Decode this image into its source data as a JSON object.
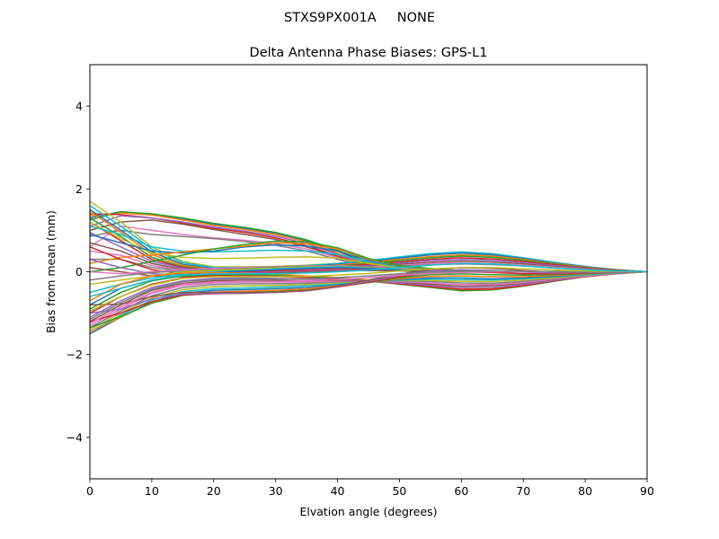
{
  "figure": {
    "suptitle": "STXS9PX001A     NONE"
  },
  "chart_data": {
    "type": "line",
    "title": "Delta Antenna Phase Biases: GPS-L1",
    "xlabel": "Elvation angle (degrees)",
    "ylabel": "Bias from mean (mm)",
    "xlim": [
      0,
      90
    ],
    "ylim": [
      -5,
      5
    ],
    "xticks": [
      0,
      10,
      20,
      30,
      40,
      50,
      60,
      70,
      80,
      90
    ],
    "yticks": [
      -4,
      -2,
      0,
      2,
      4
    ],
    "ytick_labels": [
      "−4",
      "−2",
      "0",
      "2",
      "4"
    ],
    "grid": false,
    "legend": "none",
    "x": [
      0,
      5,
      10,
      15,
      20,
      25,
      30,
      35,
      40,
      45,
      50,
      55,
      60,
      65,
      70,
      75,
      80,
      85,
      90
    ],
    "color_cycle": [
      "#1f77b4",
      "#ff7f0e",
      "#2ca02c",
      "#d62728",
      "#9467bd",
      "#8c564b",
      "#e377c2",
      "#7f7f7f",
      "#bcbd22",
      "#17becf"
    ],
    "series": [
      {
        "values": [
          1.3,
          1.45,
          1.38,
          1.27,
          1.15,
          1.05,
          0.93,
          0.75,
          0.5,
          0.2,
          0.08,
          0.02,
          0.0,
          0.0,
          0.0,
          0.0,
          0.0,
          0.0,
          0.0
        ]
      },
      {
        "values": [
          1.35,
          1.42,
          1.37,
          1.25,
          1.12,
          1.02,
          0.9,
          0.72,
          0.45,
          0.18,
          0.06,
          0.01,
          0.0,
          0.0,
          0.0,
          0.0,
          0.0,
          0.0,
          0.0
        ]
      },
      {
        "values": [
          1.25,
          1.45,
          1.4,
          1.3,
          1.17,
          1.07,
          0.95,
          0.77,
          0.52,
          0.22,
          0.08,
          0.02,
          -0.01,
          0.0,
          0.0,
          0.0,
          0.0,
          0.0,
          0.0
        ]
      },
      {
        "values": [
          1.4,
          1.38,
          1.3,
          1.18,
          1.05,
          0.95,
          0.82,
          0.63,
          0.38,
          0.15,
          0.05,
          0.01,
          0.0,
          0.0,
          0.0,
          0.0,
          0.0,
          0.0,
          0.0
        ]
      },
      {
        "values": [
          1.1,
          1.35,
          1.3,
          1.2,
          1.08,
          0.98,
          0.86,
          0.68,
          0.42,
          0.17,
          0.05,
          0.01,
          0.0,
          0.0,
          0.0,
          0.0,
          0.0,
          0.0,
          0.0
        ]
      },
      {
        "values": [
          1.0,
          1.2,
          1.25,
          1.15,
          1.02,
          0.9,
          0.78,
          0.6,
          0.36,
          0.13,
          0.04,
          0.0,
          0.0,
          0.0,
          0.0,
          0.0,
          0.0,
          0.0,
          0.0
        ]
      },
      {
        "values": [
          0.6,
          1.1,
          1.0,
          0.9,
          0.82,
          0.76,
          0.68,
          0.55,
          0.34,
          0.12,
          0.04,
          0.0,
          0.0,
          0.0,
          0.0,
          0.0,
          0.0,
          0.0,
          0.0
        ]
      },
      {
        "values": [
          0.85,
          1.0,
          0.9,
          0.85,
          0.8,
          0.73,
          0.64,
          0.5,
          0.3,
          0.11,
          0.04,
          0.01,
          0.0,
          0.0,
          0.0,
          0.0,
          0.0,
          0.0,
          0.0
        ]
      },
      {
        "values": [
          1.7,
          1.2,
          0.6,
          0.25,
          0.12,
          0.12,
          0.13,
          0.16,
          0.2,
          0.26,
          0.34,
          0.42,
          0.46,
          0.42,
          0.33,
          0.22,
          0.12,
          0.05,
          0.0
        ]
      },
      {
        "values": [
          1.6,
          1.1,
          0.55,
          0.22,
          0.1,
          0.1,
          0.12,
          0.15,
          0.2,
          0.27,
          0.36,
          0.44,
          0.48,
          0.44,
          0.34,
          0.23,
          0.13,
          0.05,
          0.0
        ]
      },
      {
        "values": [
          1.5,
          1.0,
          0.48,
          0.18,
          0.08,
          0.08,
          0.1,
          0.13,
          0.18,
          0.25,
          0.33,
          0.41,
          0.45,
          0.41,
          0.32,
          0.21,
          0.12,
          0.05,
          0.0
        ]
      },
      {
        "values": [
          1.45,
          0.95,
          0.42,
          0.15,
          0.06,
          0.06,
          0.08,
          0.11,
          0.16,
          0.22,
          0.3,
          0.37,
          0.41,
          0.38,
          0.3,
          0.2,
          0.11,
          0.04,
          0.0
        ]
      },
      {
        "values": [
          1.3,
          0.85,
          0.35,
          0.12,
          0.05,
          0.05,
          0.07,
          0.1,
          0.14,
          0.2,
          0.27,
          0.34,
          0.38,
          0.35,
          0.28,
          0.19,
          0.1,
          0.04,
          0.0
        ]
      },
      {
        "values": [
          1.2,
          0.75,
          0.3,
          0.1,
          0.04,
          0.04,
          0.06,
          0.09,
          0.12,
          0.18,
          0.24,
          0.3,
          0.34,
          0.31,
          0.25,
          0.17,
          0.09,
          0.04,
          0.0
        ]
      },
      {
        "values": [
          0.95,
          0.6,
          0.25,
          0.08,
          0.03,
          0.03,
          0.05,
          0.07,
          0.1,
          0.15,
          0.21,
          0.27,
          0.3,
          0.28,
          0.22,
          0.15,
          0.08,
          0.03,
          0.0
        ]
      },
      {
        "values": [
          0.7,
          0.5,
          0.2,
          0.05,
          0.02,
          0.02,
          0.04,
          0.06,
          0.09,
          0.13,
          0.18,
          0.23,
          0.26,
          0.24,
          0.19,
          0.13,
          0.07,
          0.03,
          0.0
        ]
      },
      {
        "values": [
          0.5,
          0.4,
          0.15,
          0.03,
          0.01,
          0.01,
          0.03,
          0.05,
          0.07,
          0.11,
          0.15,
          0.2,
          0.22,
          0.2,
          0.16,
          0.11,
          0.06,
          0.02,
          0.0
        ]
      },
      {
        "values": [
          0.3,
          0.3,
          0.1,
          0.02,
          0.0,
          0.0,
          0.02,
          0.04,
          0.06,
          0.09,
          0.13,
          0.17,
          0.19,
          0.17,
          0.14,
          0.09,
          0.05,
          0.02,
          0.0
        ]
      },
      {
        "values": [
          1.2,
          0.8,
          0.45,
          0.35,
          0.32,
          0.33,
          0.35,
          0.36,
          0.33,
          0.2,
          0.1,
          0.05,
          0.02,
          0.01,
          0.0,
          0.0,
          0.0,
          0.0,
          0.0
        ]
      },
      {
        "values": [
          1.1,
          0.9,
          0.6,
          0.5,
          0.48,
          0.5,
          0.52,
          0.5,
          0.42,
          0.25,
          0.12,
          0.06,
          0.03,
          0.01,
          0.0,
          0.0,
          0.0,
          0.0,
          0.0
        ]
      },
      {
        "values": [
          0.9,
          0.7,
          0.5,
          0.45,
          0.5,
          0.6,
          0.65,
          0.62,
          0.5,
          0.28,
          0.13,
          0.07,
          0.03,
          0.01,
          0.0,
          0.0,
          0.0,
          0.0,
          0.0
        ]
      },
      {
        "values": [
          0.2,
          0.35,
          0.4,
          0.48,
          0.55,
          0.62,
          0.7,
          0.68,
          0.55,
          0.3,
          0.14,
          0.07,
          0.03,
          0.01,
          0.0,
          0.0,
          0.0,
          0.0,
          0.0
        ]
      },
      {
        "values": [
          0.0,
          0.1,
          0.25,
          0.4,
          0.55,
          0.66,
          0.74,
          0.72,
          0.58,
          0.32,
          0.15,
          0.08,
          0.03,
          0.01,
          0.0,
          0.0,
          0.0,
          0.0,
          0.0
        ]
      },
      {
        "values": [
          0.6,
          0.3,
          0.05,
          -0.05,
          -0.02,
          0.0,
          0.02,
          0.04,
          0.06,
          0.05,
          0.03,
          0.01,
          0.0,
          0.0,
          0.0,
          0.0,
          0.0,
          0.0,
          0.0
        ]
      },
      {
        "values": [
          0.3,
          0.1,
          -0.05,
          -0.08,
          -0.05,
          -0.03,
          -0.01,
          0.02,
          0.04,
          0.04,
          0.02,
          0.0,
          0.0,
          0.0,
          0.0,
          0.0,
          0.0,
          0.0,
          0.0
        ]
      },
      {
        "values": [
          0.1,
          0.0,
          -0.1,
          -0.12,
          -0.08,
          -0.06,
          -0.03,
          0.0,
          0.02,
          0.03,
          0.02,
          0.0,
          0.0,
          0.0,
          0.0,
          0.0,
          0.0,
          0.0,
          0.0
        ]
      },
      {
        "values": [
          0.0,
          -0.05,
          0.0,
          0.05,
          0.08,
          0.1,
          0.12,
          0.14,
          0.15,
          0.12,
          0.06,
          0.02,
          0.0,
          0.0,
          0.0,
          0.0,
          0.0,
          0.0,
          0.0
        ]
      },
      {
        "values": [
          -0.2,
          -0.1,
          -0.02,
          0.02,
          0.05,
          0.08,
          0.11,
          0.13,
          0.14,
          0.11,
          0.05,
          0.02,
          0.0,
          0.0,
          0.0,
          0.0,
          0.0,
          0.0,
          0.0
        ]
      },
      {
        "values": [
          -0.3,
          -0.2,
          -0.1,
          0.0,
          0.03,
          0.06,
          0.09,
          0.12,
          0.13,
          0.1,
          0.05,
          0.02,
          0.0,
          0.0,
          0.0,
          0.0,
          0.0,
          0.0,
          0.0
        ]
      },
      {
        "values": [
          -0.5,
          -0.3,
          -0.15,
          -0.05,
          0.0,
          0.03,
          0.07,
          0.1,
          0.12,
          0.09,
          0.04,
          0.01,
          0.0,
          0.0,
          0.0,
          0.0,
          0.0,
          0.0,
          0.0
        ]
      },
      {
        "values": [
          -0.8,
          -0.4,
          -0.2,
          -0.08,
          -0.02,
          0.02,
          0.05,
          0.08,
          0.1,
          0.08,
          0.04,
          0.01,
          0.0,
          0.0,
          0.0,
          0.0,
          0.0,
          0.0,
          0.0
        ]
      },
      {
        "values": [
          -0.7,
          -0.3,
          -0.1,
          -0.03,
          -0.02,
          -0.04,
          -0.06,
          -0.1,
          -0.14,
          -0.2,
          -0.28,
          -0.36,
          -0.42,
          -0.4,
          -0.32,
          -0.21,
          -0.11,
          -0.04,
          0.0
        ]
      },
      {
        "values": [
          -0.9,
          -0.5,
          -0.22,
          -0.1,
          -0.06,
          -0.07,
          -0.09,
          -0.12,
          -0.16,
          -0.22,
          -0.3,
          -0.38,
          -0.46,
          -0.44,
          -0.35,
          -0.23,
          -0.12,
          -0.05,
          0.0
        ]
      },
      {
        "values": [
          -1.0,
          -0.6,
          -0.3,
          -0.15,
          -0.1,
          -0.1,
          -0.11,
          -0.14,
          -0.18,
          -0.23,
          -0.29,
          -0.36,
          -0.43,
          -0.42,
          -0.34,
          -0.22,
          -0.12,
          -0.05,
          0.0
        ]
      },
      {
        "values": [
          -1.1,
          -0.7,
          -0.38,
          -0.22,
          -0.16,
          -0.15,
          -0.16,
          -0.18,
          -0.2,
          -0.23,
          -0.27,
          -0.33,
          -0.39,
          -0.38,
          -0.31,
          -0.21,
          -0.11,
          -0.04,
          0.0
        ]
      },
      {
        "values": [
          -1.2,
          -0.8,
          -0.45,
          -0.28,
          -0.22,
          -0.2,
          -0.21,
          -0.22,
          -0.22,
          -0.23,
          -0.25,
          -0.3,
          -0.35,
          -0.34,
          -0.28,
          -0.19,
          -0.1,
          -0.04,
          0.0
        ]
      },
      {
        "values": [
          -1.3,
          -0.9,
          -0.52,
          -0.33,
          -0.27,
          -0.25,
          -0.25,
          -0.25,
          -0.24,
          -0.23,
          -0.24,
          -0.27,
          -0.31,
          -0.31,
          -0.26,
          -0.18,
          -0.1,
          -0.04,
          0.0
        ]
      },
      {
        "values": [
          -1.35,
          -0.95,
          -0.58,
          -0.38,
          -0.31,
          -0.29,
          -0.29,
          -0.28,
          -0.26,
          -0.24,
          -0.22,
          -0.24,
          -0.27,
          -0.28,
          -0.23,
          -0.16,
          -0.09,
          -0.03,
          0.0
        ]
      },
      {
        "values": [
          -1.4,
          -1.0,
          -0.63,
          -0.43,
          -0.36,
          -0.34,
          -0.33,
          -0.31,
          -0.28,
          -0.25,
          -0.21,
          -0.21,
          -0.23,
          -0.24,
          -0.2,
          -0.14,
          -0.08,
          -0.03,
          0.0
        ]
      },
      {
        "values": [
          -1.45,
          -1.05,
          -0.68,
          -0.48,
          -0.41,
          -0.39,
          -0.37,
          -0.34,
          -0.3,
          -0.25,
          -0.2,
          -0.18,
          -0.19,
          -0.2,
          -0.17,
          -0.12,
          -0.07,
          -0.03,
          0.0
        ]
      },
      {
        "values": [
          -1.5,
          -1.1,
          -0.73,
          -0.52,
          -0.45,
          -0.43,
          -0.41,
          -0.38,
          -0.32,
          -0.26,
          -0.19,
          -0.15,
          -0.15,
          -0.17,
          -0.15,
          -0.11,
          -0.06,
          -0.02,
          0.0
        ]
      },
      {
        "values": [
          -1.45,
          -1.1,
          -0.75,
          -0.55,
          -0.49,
          -0.47,
          -0.45,
          -0.41,
          -0.34,
          -0.26,
          -0.17,
          -0.11,
          -0.1,
          -0.12,
          -0.12,
          -0.09,
          -0.05,
          -0.02,
          0.0
        ]
      },
      {
        "values": [
          -1.35,
          -1.08,
          -0.76,
          -0.57,
          -0.52,
          -0.5,
          -0.48,
          -0.44,
          -0.36,
          -0.26,
          -0.15,
          -0.07,
          -0.05,
          -0.07,
          -0.08,
          -0.07,
          -0.04,
          -0.02,
          0.0
        ]
      },
      {
        "values": [
          -1.2,
          -1.0,
          -0.72,
          -0.56,
          -0.53,
          -0.52,
          -0.5,
          -0.46,
          -0.37,
          -0.25,
          -0.12,
          -0.03,
          0.0,
          -0.02,
          -0.05,
          -0.05,
          -0.03,
          -0.01,
          0.0
        ]
      },
      {
        "values": [
          -1.0,
          -0.9,
          -0.66,
          -0.54,
          -0.52,
          -0.52,
          -0.5,
          -0.46,
          -0.36,
          -0.23,
          -0.09,
          0.02,
          0.05,
          0.03,
          -0.01,
          -0.03,
          -0.02,
          -0.01,
          0.0
        ]
      },
      {
        "values": [
          -0.8,
          -0.78,
          -0.6,
          -0.5,
          -0.5,
          -0.5,
          -0.49,
          -0.45,
          -0.35,
          -0.2,
          -0.06,
          0.06,
          0.1,
          0.08,
          0.03,
          -0.01,
          -0.01,
          0.0,
          0.0
        ]
      },
      {
        "values": [
          -1.25,
          -0.85,
          -0.5,
          -0.3,
          -0.25,
          -0.24,
          -0.24,
          -0.22,
          -0.19,
          -0.14,
          -0.08,
          -0.04,
          -0.02,
          0.0,
          0.0,
          0.0,
          0.0,
          0.0,
          0.0
        ]
      },
      {
        "values": [
          -1.15,
          -0.75,
          -0.42,
          -0.24,
          -0.19,
          -0.18,
          -0.18,
          -0.17,
          -0.14,
          -0.1,
          -0.05,
          -0.01,
          0.01,
          0.02,
          0.01,
          0.0,
          0.0,
          0.0,
          0.0
        ]
      },
      {
        "values": [
          -0.95,
          -0.6,
          -0.32,
          -0.16,
          -0.12,
          -0.12,
          -0.12,
          -0.11,
          -0.08,
          -0.04,
          0.02,
          0.07,
          0.1,
          0.1,
          0.07,
          0.04,
          0.02,
          0.01,
          0.0
        ]
      },
      {
        "values": [
          -0.6,
          -0.4,
          -0.2,
          -0.08,
          -0.05,
          -0.05,
          -0.05,
          -0.03,
          0.0,
          0.04,
          0.1,
          0.16,
          0.2,
          0.19,
          0.14,
          0.09,
          0.05,
          0.02,
          0.0
        ]
      }
    ]
  }
}
